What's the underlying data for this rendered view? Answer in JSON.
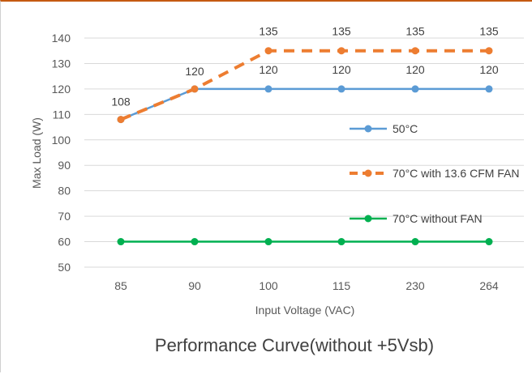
{
  "chart_data": {
    "type": "line",
    "title": "Performance Curve(without +5Vsb)",
    "xlabel": "Input Voltage (VAC)",
    "ylabel": "Max Load (W)",
    "categories": [
      "85",
      "90",
      "100",
      "115",
      "230",
      "264"
    ],
    "ylim": [
      50,
      140
    ],
    "yticks": [
      50,
      60,
      70,
      80,
      90,
      100,
      110,
      120,
      130,
      140
    ],
    "grid": true,
    "legend_position": "right",
    "series": [
      {
        "name": "50°C",
        "values": [
          108,
          120,
          120,
          120,
          120,
          120
        ],
        "color": "#5b9bd5",
        "dashed": false,
        "labels": [
          "108",
          "",
          "120",
          "120",
          "120",
          "120"
        ]
      },
      {
        "name": "70°C with 13.6 CFM FAN",
        "values": [
          108,
          120,
          135,
          135,
          135,
          135
        ],
        "color": "#ed7d31",
        "dashed": true,
        "labels": [
          "",
          "120",
          "135",
          "135",
          "135",
          "135"
        ]
      },
      {
        "name": "70°C without FAN",
        "values": [
          60,
          60,
          60,
          60,
          60,
          60
        ],
        "color": "#00b050",
        "dashed": false,
        "labels": [
          "",
          "",
          "",
          "",
          "",
          ""
        ]
      }
    ]
  }
}
